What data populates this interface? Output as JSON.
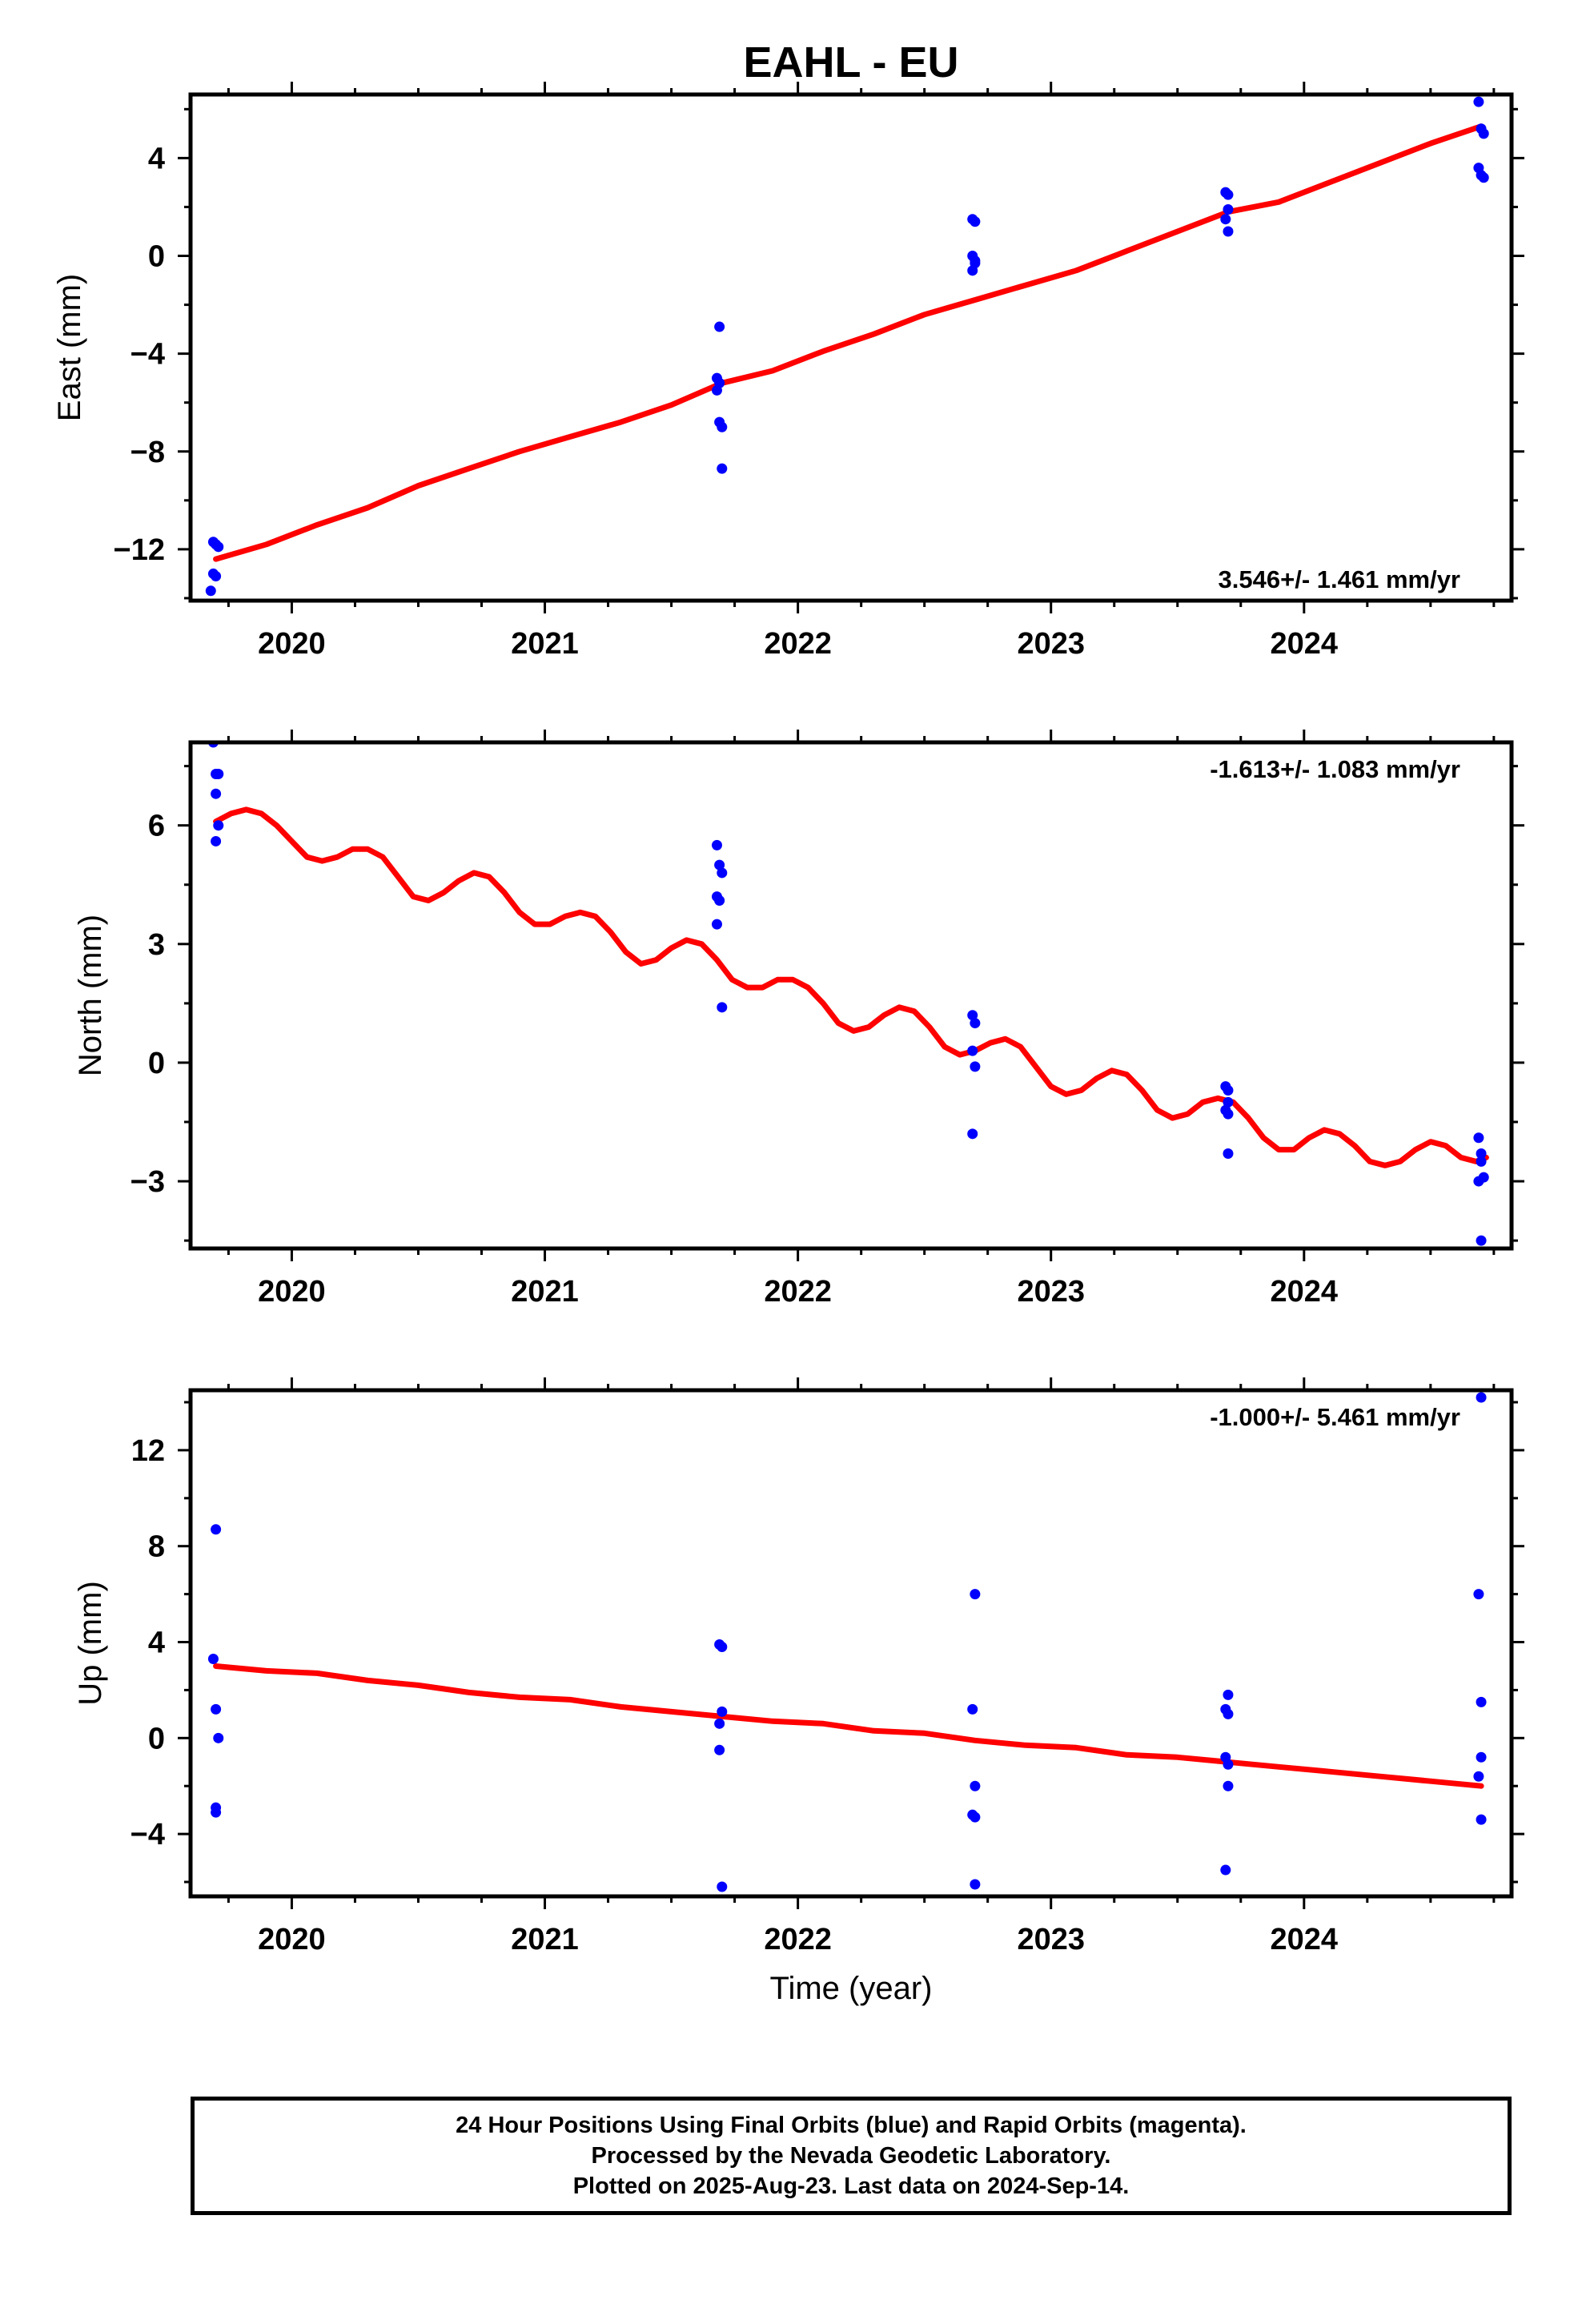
{
  "figure": {
    "title": "EAHL - EU"
  },
  "caption": {
    "line1": "24 Hour Positions Using Final Orbits (blue) and Rapid Orbits (magenta).",
    "line2": "Processed by the Nevada Geodetic Laboratory.",
    "line3": "Plotted on 2025-Aug-23. Last data on 2024-Sep-14."
  },
  "colors": {
    "data_points": "#0000ff",
    "model_curve": "#ff0000",
    "frame": "#000000"
  },
  "chart_data": [
    {
      "type": "scatter",
      "title": "EAHL - EU",
      "ylabel": "East (mm)",
      "xlabel": "",
      "xlim": [
        2019.6,
        2024.82
      ],
      "ylim": [
        -14.1,
        6.6
      ],
      "xticks": [
        2020,
        2021,
        2022,
        2023,
        2024
      ],
      "yticks": [
        -12,
        -8,
        -4,
        0,
        4
      ],
      "ytick_labels": [
        "−12",
        "−8",
        "−4",
        "0",
        "4"
      ],
      "rate_label": "3.546+/- 1.461 mm/yr",
      "rate_position": "bottom-right",
      "series": [
        {
          "kind": "points",
          "x": [
            2019.69,
            2019.7,
            2019.71,
            2019.69,
            2019.7,
            2019.68,
            2021.69,
            2021.68,
            2021.69,
            2021.68,
            2021.69,
            2021.7,
            2021.7,
            2022.69,
            2022.7,
            2022.69,
            2022.7,
            2022.69,
            2022.7,
            2023.69,
            2023.7,
            2023.7,
            2023.69,
            2023.7,
            2024.69,
            2024.7,
            2024.71,
            2024.69,
            2024.7,
            2024.71
          ],
          "y": [
            -11.7,
            -11.8,
            -11.9,
            -13.0,
            -13.1,
            -13.7,
            -2.9,
            -5.0,
            -5.2,
            -5.5,
            -6.8,
            -7.0,
            -8.7,
            1.5,
            1.4,
            0.0,
            -0.3,
            -0.6,
            -0.2,
            2.6,
            2.5,
            1.9,
            1.5,
            1.0,
            6.3,
            5.2,
            5.0,
            3.6,
            3.3,
            3.2
          ]
        },
        {
          "kind": "model",
          "x": [
            2019.7,
            2019.9,
            2020.1,
            2020.3,
            2020.5,
            2020.7,
            2020.9,
            2021.1,
            2021.3,
            2021.5,
            2021.7,
            2021.9,
            2022.1,
            2022.3,
            2022.5,
            2022.7,
            2022.9,
            2023.1,
            2023.3,
            2023.5,
            2023.7,
            2023.9,
            2024.1,
            2024.3,
            2024.5,
            2024.7
          ],
          "y": [
            -12.4,
            -11.8,
            -11.0,
            -10.3,
            -9.4,
            -8.7,
            -8.0,
            -7.4,
            -6.8,
            -6.1,
            -5.2,
            -4.7,
            -3.9,
            -3.2,
            -2.4,
            -1.8,
            -1.2,
            -0.6,
            0.2,
            1.0,
            1.8,
            2.2,
            3.0,
            3.8,
            4.6,
            5.3
          ]
        }
      ]
    },
    {
      "type": "scatter",
      "title": "",
      "ylabel": "North (mm)",
      "xlabel": "",
      "xlim": [
        2019.6,
        2024.82
      ],
      "ylim": [
        -4.7,
        8.1
      ],
      "xticks": [
        2020,
        2021,
        2022,
        2023,
        2024
      ],
      "yticks": [
        -3,
        0,
        3,
        6
      ],
      "ytick_labels": [
        "−3",
        "0",
        "3",
        "6"
      ],
      "rate_label": "-1.613+/- 1.083 mm/yr",
      "rate_position": "top-right",
      "series": [
        {
          "kind": "points",
          "x": [
            2019.69,
            2019.7,
            2019.7,
            2019.71,
            2019.7,
            2019.71,
            2021.68,
            2021.69,
            2021.7,
            2021.68,
            2021.69,
            2021.68,
            2021.7,
            2022.69,
            2022.7,
            2022.69,
            2022.7,
            2022.69,
            2023.69,
            2023.7,
            2023.7,
            2023.69,
            2023.7,
            2023.7,
            2024.69,
            2024.7,
            2024.7,
            2024.71,
            2024.69,
            2024.7
          ],
          "y": [
            8.1,
            7.3,
            6.8,
            6.0,
            5.6,
            7.3,
            5.5,
            5.0,
            4.8,
            4.2,
            4.1,
            3.5,
            1.4,
            1.2,
            1.0,
            0.3,
            -0.1,
            -1.8,
            -0.6,
            -0.7,
            -1.0,
            -1.2,
            -1.3,
            -2.3,
            -1.9,
            -2.3,
            -2.5,
            -2.9,
            -3.0,
            -4.5
          ]
        },
        {
          "kind": "model",
          "x": [
            2019.7,
            2019.76,
            2019.82,
            2019.88,
            2019.94,
            2020.0,
            2020.06,
            2020.12,
            2020.18,
            2020.24,
            2020.3,
            2020.36,
            2020.42,
            2020.48,
            2020.54,
            2020.6,
            2020.66,
            2020.72,
            2020.78,
            2020.84,
            2020.9,
            2020.96,
            2021.02,
            2021.08,
            2021.14,
            2021.2,
            2021.26,
            2021.32,
            2021.38,
            2021.44,
            2021.5,
            2021.56,
            2021.62,
            2021.68,
            2021.74,
            2021.8,
            2021.86,
            2021.92,
            2021.98,
            2022.04,
            2022.1,
            2022.16,
            2022.22,
            2022.28,
            2022.34,
            2022.4,
            2022.46,
            2022.52,
            2022.58,
            2022.64,
            2022.7,
            2022.76,
            2022.82,
            2022.88,
            2022.94,
            2023.0,
            2023.06,
            2023.12,
            2023.18,
            2023.24,
            2023.3,
            2023.36,
            2023.42,
            2023.48,
            2023.54,
            2023.6,
            2023.66,
            2023.72,
            2023.78,
            2023.84,
            2023.9,
            2023.96,
            2024.02,
            2024.08,
            2024.14,
            2024.2,
            2024.26,
            2024.32,
            2024.38,
            2024.44,
            2024.5,
            2024.56,
            2024.62,
            2024.68,
            2024.72
          ],
          "y": [
            6.1,
            6.3,
            6.4,
            6.3,
            6.0,
            5.6,
            5.2,
            5.1,
            5.2,
            5.4,
            5.4,
            5.2,
            4.7,
            4.2,
            4.1,
            4.3,
            4.6,
            4.8,
            4.7,
            4.3,
            3.8,
            3.5,
            3.5,
            3.7,
            3.8,
            3.7,
            3.3,
            2.8,
            2.5,
            2.6,
            2.9,
            3.1,
            3.0,
            2.6,
            2.1,
            1.9,
            1.9,
            2.1,
            2.1,
            1.9,
            1.5,
            1.0,
            0.8,
            0.9,
            1.2,
            1.4,
            1.3,
            0.9,
            0.4,
            0.2,
            0.3,
            0.5,
            0.6,
            0.4,
            -0.1,
            -0.6,
            -0.8,
            -0.7,
            -0.4,
            -0.2,
            -0.3,
            -0.7,
            -1.2,
            -1.4,
            -1.3,
            -1.0,
            -0.9,
            -1.0,
            -1.4,
            -1.9,
            -2.2,
            -2.2,
            -1.9,
            -1.7,
            -1.8,
            -2.1,
            -2.5,
            -2.6,
            -2.5,
            -2.2,
            -2.0,
            -2.1,
            -2.4,
            -2.5,
            -2.4
          ]
        }
      ]
    },
    {
      "type": "scatter",
      "title": "",
      "ylabel": "Up (mm)",
      "xlabel": "Time (year)",
      "xlim": [
        2019.6,
        2024.82
      ],
      "ylim": [
        -6.6,
        14.5
      ],
      "xticks": [
        2020,
        2021,
        2022,
        2023,
        2024
      ],
      "yticks": [
        -4,
        0,
        4,
        8,
        12
      ],
      "ytick_labels": [
        "−4",
        "0",
        "4",
        "8",
        "12"
      ],
      "rate_label": "-1.000+/- 5.461 mm/yr",
      "rate_position": "top-right",
      "series": [
        {
          "kind": "points",
          "x": [
            2019.7,
            2019.69,
            2019.7,
            2019.71,
            2019.7,
            2019.7,
            2021.69,
            2021.7,
            2021.7,
            2021.69,
            2021.69,
            2021.7,
            2022.7,
            2022.69,
            2022.7,
            2022.69,
            2022.7,
            2022.7,
            2023.7,
            2023.69,
            2023.7,
            2023.69,
            2023.7,
            2023.7,
            2023.69,
            2024.7,
            2024.69,
            2024.7,
            2024.7,
            2024.69,
            2024.7
          ],
          "y": [
            8.7,
            3.3,
            1.2,
            0.0,
            -2.9,
            -3.1,
            3.9,
            3.8,
            1.1,
            0.6,
            -0.5,
            -6.2,
            6.0,
            1.2,
            -2.0,
            -3.2,
            -3.3,
            -6.1,
            1.8,
            1.2,
            1.0,
            -0.8,
            -1.1,
            -2.0,
            -5.5,
            14.2,
            6.0,
            1.5,
            -0.8,
            -1.6,
            -3.4
          ]
        },
        {
          "kind": "model",
          "x": [
            2019.7,
            2019.9,
            2020.1,
            2020.3,
            2020.5,
            2020.7,
            2020.9,
            2021.1,
            2021.3,
            2021.5,
            2021.7,
            2021.9,
            2022.1,
            2022.3,
            2022.5,
            2022.7,
            2022.9,
            2023.1,
            2023.3,
            2023.5,
            2023.7,
            2023.9,
            2024.1,
            2024.3,
            2024.5,
            2024.7
          ],
          "y": [
            3.0,
            2.8,
            2.7,
            2.4,
            2.2,
            1.9,
            1.7,
            1.6,
            1.3,
            1.1,
            0.9,
            0.7,
            0.6,
            0.3,
            0.2,
            -0.1,
            -0.3,
            -0.4,
            -0.7,
            -0.8,
            -1.0,
            -1.2,
            -1.4,
            -1.6,
            -1.8,
            -2.0
          ]
        }
      ]
    }
  ]
}
